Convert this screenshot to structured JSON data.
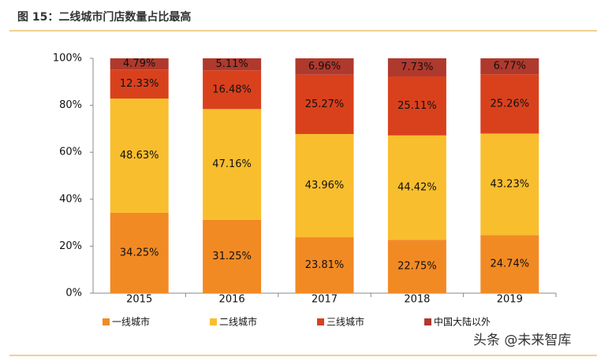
{
  "chart_data": {
    "type": "stacked_bar",
    "title": "图 15：二线城市门店数量占比最高",
    "categories": [
      "2015",
      "2016",
      "2017",
      "2018",
      "2019"
    ],
    "series": [
      {
        "name": "一线城市",
        "color": "#f28a24",
        "values": [
          34.25,
          31.25,
          23.81,
          22.75,
          24.74
        ],
        "value_labels": [
          "34.25%",
          "31.25%",
          "23.81%",
          "22.75%",
          "24.74%"
        ]
      },
      {
        "name": "二线城市",
        "color": "#f9be2e",
        "values": [
          48.63,
          47.16,
          43.96,
          44.42,
          43.23
        ],
        "value_labels": [
          "48.63%",
          "47.16%",
          "43.96%",
          "44.42%",
          "43.23%"
        ]
      },
      {
        "name": "三线城市",
        "color": "#d9411d",
        "values": [
          12.33,
          16.48,
          25.27,
          25.11,
          25.26
        ],
        "value_labels": [
          "12.33%",
          "16.48%",
          "25.27%",
          "25.11%",
          "25.26%"
        ]
      },
      {
        "name": "中国大陆以外",
        "color": "#b0392d",
        "values": [
          4.79,
          5.11,
          6.96,
          7.73,
          6.77
        ],
        "value_labels": [
          "4.79%",
          "5.11%",
          "6.96%",
          "7.73%",
          "6.77%"
        ]
      }
    ],
    "ylim": [
      0,
      100
    ],
    "yticks": [
      {
        "value": 0,
        "label": "0%"
      },
      {
        "value": 20,
        "label": "20%"
      },
      {
        "value": 40,
        "label": "40%"
      },
      {
        "value": 60,
        "label": "60%"
      },
      {
        "value": 80,
        "label": "80%"
      },
      {
        "value": 100,
        "label": "100%"
      }
    ],
    "watermark": "头条 @未来智库"
  }
}
